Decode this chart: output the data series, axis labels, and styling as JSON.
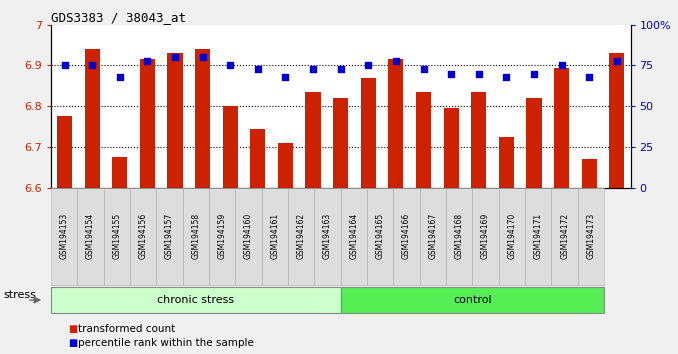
{
  "title": "GDS3383 / 38043_at",
  "samples": [
    "GSM194153",
    "GSM194154",
    "GSM194155",
    "GSM194156",
    "GSM194157",
    "GSM194158",
    "GSM194159",
    "GSM194160",
    "GSM194161",
    "GSM194162",
    "GSM194163",
    "GSM194164",
    "GSM194165",
    "GSM194166",
    "GSM194167",
    "GSM194168",
    "GSM194169",
    "GSM194170",
    "GSM194171",
    "GSM194172",
    "GSM194173"
  ],
  "bar_values": [
    6.775,
    6.94,
    6.675,
    6.915,
    6.93,
    6.94,
    6.8,
    6.745,
    6.71,
    6.835,
    6.82,
    6.87,
    6.915,
    6.835,
    6.795,
    6.835,
    6.725,
    6.82,
    6.895,
    6.67,
    6.93
  ],
  "dot_values": [
    75,
    75,
    68,
    78,
    80,
    80,
    75,
    73,
    68,
    73,
    73,
    75,
    78,
    73,
    70,
    70,
    68,
    70,
    75,
    68,
    78
  ],
  "bar_color": "#cc2200",
  "dot_color": "#0000cc",
  "ylim_left": [
    6.6,
    7.0
  ],
  "ylim_right": [
    0,
    100
  ],
  "yticks_left": [
    6.6,
    6.7,
    6.8,
    6.9,
    7.0
  ],
  "ytick_left_labels": [
    "6.6",
    "6.7",
    "6.8",
    "6.9",
    "7"
  ],
  "yticks_right": [
    0,
    25,
    50,
    75,
    100
  ],
  "ytick_right_labels": [
    "0",
    "25",
    "50",
    "75",
    "100%"
  ],
  "grid_values": [
    6.7,
    6.8,
    6.9
  ],
  "chronic_stress_count": 11,
  "group_labels": [
    "chronic stress",
    "control"
  ],
  "chronic_color": "#ccffcc",
  "control_color": "#55ee55",
  "legend_items": [
    "transformed count",
    "percentile rank within the sample"
  ],
  "stress_label": "stress",
  "fig_bg": "#f0f0f0",
  "plot_bg": "#ffffff",
  "xtick_bg": "#dddddd"
}
